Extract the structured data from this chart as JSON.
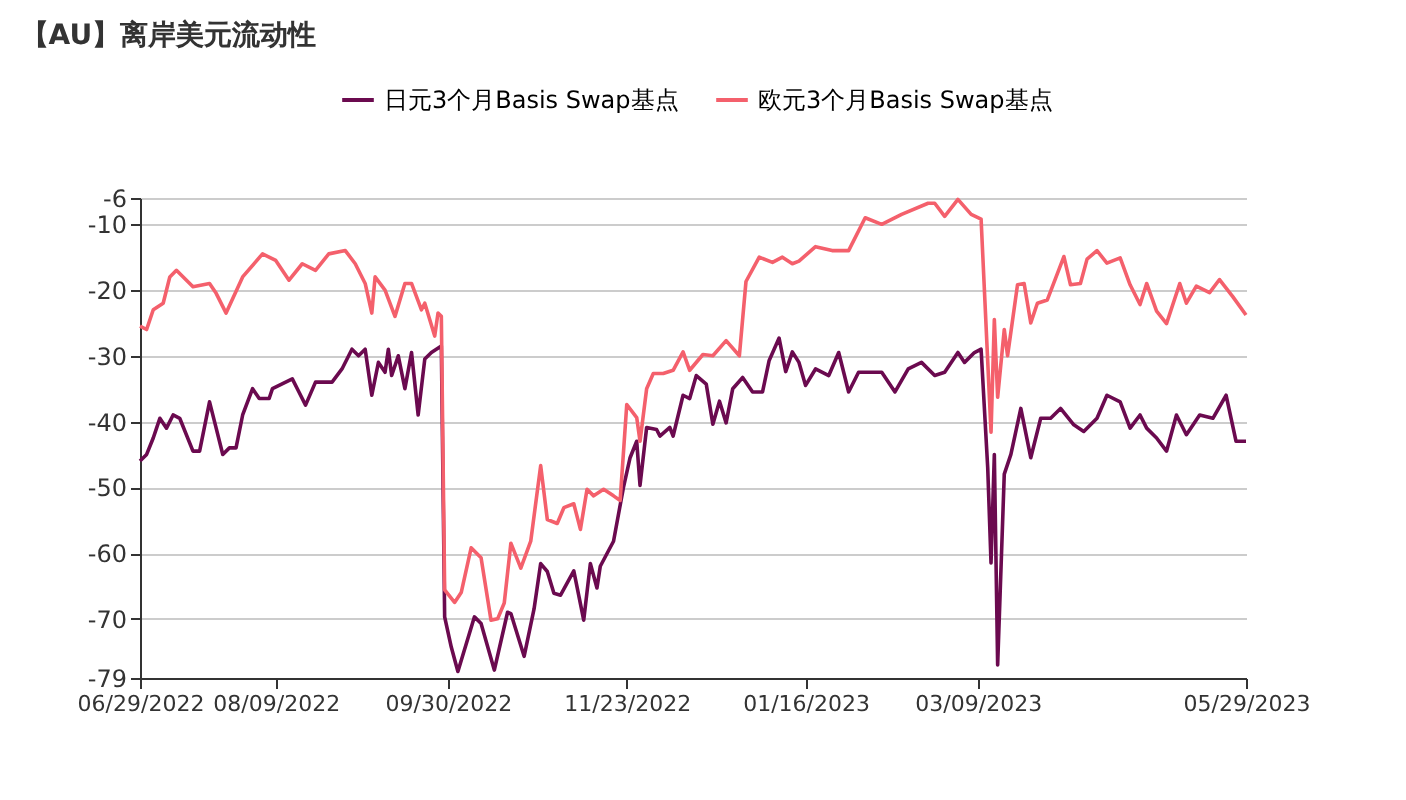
{
  "chart_data": {
    "type": "line",
    "title": "【AU】离岸美元流动性",
    "legend": "top",
    "grid": "y",
    "line_style": "solid",
    "xlim": [
      "2022-06-29",
      "2023-05-29"
    ],
    "xticks": [
      {
        "value": "2022-06-29",
        "label": "06/29/2022"
      },
      {
        "value": "2022-08-09",
        "label": "08/09/2022"
      },
      {
        "value": "2022-09-30",
        "label": "09/30/2022"
      },
      {
        "value": "2022-11-23",
        "label": "11/23/2022"
      },
      {
        "value": "2023-01-16",
        "label": "01/16/2023"
      },
      {
        "value": "2023-03-09",
        "label": "03/09/2023"
      },
      {
        "value": "2023-05-29",
        "label": "05/29/2023"
      }
    ],
    "ylim": [
      -79,
      -6
    ],
    "yticks": [
      -79,
      -70,
      -60,
      -50,
      -40,
      -30,
      -20,
      -10,
      -6
    ],
    "series": [
      {
        "name": "日元3个月Basis Swap基点",
        "color": "#6b0a4f",
        "x": [
          "2022-06-29",
          "2022-07-01",
          "2022-07-03",
          "2022-07-04",
          "2022-07-05",
          "2022-07-07",
          "2022-07-09",
          "2022-07-11",
          "2022-07-15",
          "2022-07-17",
          "2022-07-20",
          "2022-07-22",
          "2022-07-24",
          "2022-07-26",
          "2022-07-28",
          "2022-07-30",
          "2022-08-02",
          "2022-08-04",
          "2022-08-07",
          "2022-08-08",
          "2022-08-14",
          "2022-08-16",
          "2022-08-18",
          "2022-08-21",
          "2022-08-26",
          "2022-08-29",
          "2022-09-01",
          "2022-09-03",
          "2022-09-05",
          "2022-09-07",
          "2022-09-09",
          "2022-09-11",
          "2022-09-12",
          "2022-09-13",
          "2022-09-15",
          "2022-09-17",
          "2022-09-19",
          "2022-09-21",
          "2022-09-23",
          "2022-09-25",
          "2022-09-28",
          "2022-09-29",
          "2022-10-01",
          "2022-10-03",
          "2022-10-08",
          "2022-10-10",
          "2022-10-14",
          "2022-10-18",
          "2022-10-19",
          "2022-10-23",
          "2022-10-26",
          "2022-10-28",
          "2022-10-30",
          "2022-11-01",
          "2022-11-03",
          "2022-11-07",
          "2022-11-10",
          "2022-11-12",
          "2022-11-14",
          "2022-11-15",
          "2022-11-19",
          "2022-11-22",
          "2022-11-24",
          "2022-11-26",
          "2022-11-27",
          "2022-11-29",
          "2022-12-02",
          "2022-12-03",
          "2022-12-06",
          "2022-12-07",
          "2022-12-10",
          "2022-12-12",
          "2022-12-14",
          "2022-12-17",
          "2022-12-19",
          "2022-12-21",
          "2022-12-23",
          "2022-12-25",
          "2022-12-28",
          "2022-12-31",
          "2023-01-03",
          "2023-01-05",
          "2023-01-08",
          "2023-01-10",
          "2023-01-12",
          "2023-01-14",
          "2023-01-16",
          "2023-01-19",
          "2023-01-23",
          "2023-01-26",
          "2023-01-29",
          "2023-02-01",
          "2023-02-08",
          "2023-02-12",
          "2023-02-16",
          "2023-02-20",
          "2023-02-24",
          "2023-02-27",
          "2023-03-03",
          "2023-03-05",
          "2023-03-08",
          "2023-03-10",
          "2023-03-12",
          "2023-03-13",
          "2023-03-14",
          "2023-03-15",
          "2023-03-17",
          "2023-03-19",
          "2023-03-22",
          "2023-03-25",
          "2023-03-28",
          "2023-03-31",
          "2023-04-03",
          "2023-04-07",
          "2023-04-10",
          "2023-04-14",
          "2023-04-17",
          "2023-04-21",
          "2023-04-24",
          "2023-04-27",
          "2023-04-29",
          "2023-05-02",
          "2023-05-05",
          "2023-05-08",
          "2023-05-11",
          "2023-05-15",
          "2023-05-19",
          "2023-05-23",
          "2023-05-26",
          "2023-05-29"
        ],
        "values": [
          -46,
          -45,
          -42.5,
          -41,
          -39.5,
          -41,
          -39,
          -39.5,
          -44.5,
          -44.5,
          -37,
          -41,
          -45,
          -44,
          -44,
          -39,
          -35,
          -36.5,
          -36.5,
          -35,
          -33.5,
          -35.5,
          -37.5,
          -34,
          -34,
          -32,
          -29,
          -30,
          -29,
          -36,
          -31,
          -32.5,
          -29,
          -33,
          -30,
          -35,
          -29.5,
          -39,
          -30.5,
          -29.5,
          -28.5,
          -69.7,
          -74.3,
          -78,
          -69.7,
          -70.7,
          -77.8,
          -69,
          -69.2,
          -75.7,
          -68.5,
          -61.6,
          -62.8,
          -66.1,
          -66.4,
          -62.7,
          -70.2,
          -61.6,
          -65.3,
          -62,
          -58.2,
          -50,
          -45.5,
          -43,
          -49.7,
          -40.9,
          -41.2,
          -42.2,
          -40.9,
          -42.2,
          -36,
          -36.5,
          -33,
          -34.3,
          -40.4,
          -36.9,
          -40.2,
          -35,
          -33.3,
          -35.5,
          -35.5,
          -30.7,
          -27.3,
          -32.4,
          -29.4,
          -31,
          -34.5,
          -32,
          -33,
          -29.5,
          -35.5,
          -32.5,
          -32.5,
          -35.5,
          -32,
          -31,
          -33,
          -32.5,
          -29.5,
          -31,
          -29.5,
          -29,
          -47,
          -61.5,
          -45,
          -77,
          -48,
          -45,
          -38,
          -45.5,
          -39.5,
          -39.5,
          -38,
          -40.5,
          -41.5,
          -39.5,
          -36,
          -37,
          -41,
          -39,
          -41,
          -42.5,
          -44.5,
          -39,
          -42,
          -39,
          -39.5,
          -36,
          -43,
          -43
        ]
      },
      {
        "name": "欧元3个月Basis Swap基点",
        "color": "#f4606c",
        "x": [
          "2022-06-29",
          "2022-07-01",
          "2022-07-03",
          "2022-07-06",
          "2022-07-08",
          "2022-07-10",
          "2022-07-15",
          "2022-07-20",
          "2022-07-22",
          "2022-07-25",
          "2022-07-30",
          "2022-08-05",
          "2022-08-09",
          "2022-08-13",
          "2022-08-17",
          "2022-08-21",
          "2022-08-25",
          "2022-08-30",
          "2022-09-02",
          "2022-09-05",
          "2022-09-07",
          "2022-09-08",
          "2022-09-11",
          "2022-09-14",
          "2022-09-17",
          "2022-09-19",
          "2022-09-22",
          "2022-09-23",
          "2022-09-26",
          "2022-09-27",
          "2022-09-28",
          "2022-09-29",
          "2022-10-02",
          "2022-10-04",
          "2022-10-07",
          "2022-10-10",
          "2022-10-13",
          "2022-10-15",
          "2022-10-17",
          "2022-10-19",
          "2022-10-22",
          "2022-10-25",
          "2022-10-28",
          "2022-10-30",
          "2022-11-02",
          "2022-11-04",
          "2022-11-07",
          "2022-11-09",
          "2022-11-11",
          "2022-11-13",
          "2022-11-16",
          "2022-11-19",
          "2022-11-21",
          "2022-11-23",
          "2022-11-26",
          "2022-11-27",
          "2022-11-29",
          "2022-12-01",
          "2022-12-04",
          "2022-12-07",
          "2022-12-10",
          "2022-12-12",
          "2022-12-16",
          "2022-12-19",
          "2022-12-23",
          "2022-12-27",
          "2022-12-29",
          "2023-01-02",
          "2023-01-06",
          "2023-01-09",
          "2023-01-12",
          "2023-01-14",
          "2023-01-19",
          "2023-01-24",
          "2023-01-29",
          "2023-02-03",
          "2023-02-08",
          "2023-02-14",
          "2023-02-22",
          "2023-02-24",
          "2023-02-27",
          "2023-03-03",
          "2023-03-07",
          "2023-03-10",
          "2023-03-13",
          "2023-03-14",
          "2023-03-15",
          "2023-03-17",
          "2023-03-18",
          "2023-03-21",
          "2023-03-23",
          "2023-03-25",
          "2023-03-27",
          "2023-03-30",
          "2023-04-04",
          "2023-04-06",
          "2023-04-09",
          "2023-04-11",
          "2023-04-14",
          "2023-04-17",
          "2023-04-21",
          "2023-04-24",
          "2023-04-27",
          "2023-04-29",
          "2023-05-02",
          "2023-05-05",
          "2023-05-09",
          "2023-05-11",
          "2023-05-14",
          "2023-05-18",
          "2023-05-21",
          "2023-05-25",
          "2023-05-29"
        ],
        "values": [
          -25.5,
          -26,
          -23,
          -22,
          -18,
          -17,
          -19.5,
          -19,
          -20.5,
          -23.5,
          -18,
          -14.5,
          -15.5,
          -18.5,
          -16,
          -17,
          -14.5,
          -14,
          -16,
          -19,
          -23.5,
          -18,
          -20,
          -24,
          -19,
          -19,
          -23,
          -22,
          -27,
          -23.5,
          -24,
          -65.6,
          -67.5,
          -66,
          -59.2,
          -60.7,
          -70.2,
          -70,
          -67.6,
          -58.5,
          -62.3,
          -58.2,
          -46.7,
          -54.9,
          -55.5,
          -53.1,
          -52.5,
          -56.4,
          -50.3,
          -51.3,
          -50.3,
          -51.3,
          -52,
          -37.4,
          -39.4,
          -43,
          -35,
          -32.7,
          -32.7,
          -32.2,
          -29.4,
          -32.2,
          -29.8,
          -30,
          -27.7,
          -30,
          -18.7,
          -15,
          -15.8,
          -15,
          -16,
          -15.6,
          -13.4,
          -14,
          -14,
          -9,
          -10,
          -8.5,
          -6.8,
          -6.8,
          -8.8,
          -6.2,
          -8.5,
          -9.2,
          -41.6,
          -24.5,
          -36.3,
          -26,
          -30,
          -19.2,
          -19,
          -25,
          -22,
          -21.5,
          -14.9,
          -19.2,
          -19,
          -15.3,
          -14,
          -15.9,
          -15.1,
          -19.2,
          -22.2,
          -19,
          -23.2,
          -25.1,
          -19,
          -22,
          -19.4,
          -20.4,
          -18.4,
          -21,
          -23.8
        ]
      }
    ]
  }
}
